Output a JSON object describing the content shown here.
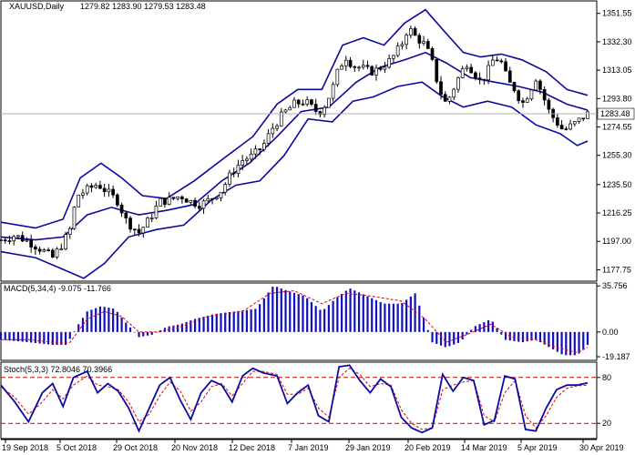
{
  "chart_data": [
    {
      "type": "candlestick",
      "title": "XAUUSD,Daily",
      "ohlc_label": "1279.82 1283.90 1279.53 1283.48",
      "ylim": [
        1170,
        1360
      ],
      "yticks": [
        "1351.55",
        "1332.30",
        "1313.05",
        "1293.80",
        "1274.55",
        "1255.30",
        "1235.50",
        "1216.25",
        "1197.00",
        "1177.75"
      ],
      "ytick_values": [
        1351.55,
        1332.3,
        1313.05,
        1293.8,
        1274.55,
        1255.3,
        1235.5,
        1216.25,
        1197.0,
        1177.75
      ],
      "current_price": 1283.48,
      "current_price_label": "1283.48",
      "xticks": [
        "19 Sep 2018",
        "5 Oct 2018",
        "29 Oct 2018",
        "20 Nov 2018",
        "12 Dec 2018",
        "7 Jan 2019",
        "29 Jan 2019",
        "20 Feb 2019",
        "14 Mar 2019",
        "5 Apr 2019",
        "30 Apr 2019"
      ],
      "close_path": [
        [
          0,
          1198
        ],
        [
          8,
          1201
        ],
        [
          16,
          1197
        ],
        [
          24,
          1191
        ],
        [
          30,
          1186
        ],
        [
          36,
          1196
        ],
        [
          40,
          1205
        ],
        [
          44,
          1228
        ],
        [
          50,
          1232
        ],
        [
          56,
          1236
        ],
        [
          62,
          1230
        ],
        [
          68,
          1224
        ],
        [
          72,
          1212
        ],
        [
          76,
          1207
        ],
        [
          80,
          1203
        ],
        [
          86,
          1212
        ],
        [
          92,
          1224
        ],
        [
          98,
          1225
        ],
        [
          104,
          1228
        ],
        [
          110,
          1224
        ],
        [
          116,
          1222
        ],
        [
          122,
          1226
        ],
        [
          128,
          1232
        ],
        [
          134,
          1244
        ],
        [
          140,
          1252
        ],
        [
          146,
          1255
        ],
        [
          152,
          1262
        ],
        [
          158,
          1275
        ],
        [
          164,
          1284
        ],
        [
          170,
          1290
        ],
        [
          176,
          1292
        ],
        [
          180,
          1288
        ],
        [
          184,
          1284
        ],
        [
          188,
          1290
        ],
        [
          192,
          1300
        ],
        [
          196,
          1315
        ],
        [
          200,
          1322
        ],
        [
          204,
          1316
        ],
        [
          208,
          1315
        ],
        [
          212,
          1313
        ],
        [
          216,
          1312
        ],
        [
          220,
          1315
        ],
        [
          226,
          1320
        ],
        [
          232,
          1330
        ],
        [
          236,
          1342
        ],
        [
          240,
          1336
        ],
        [
          246,
          1330
        ],
        [
          250,
          1318
        ],
        [
          254,
          1300
        ],
        [
          258,
          1290
        ],
        [
          262,
          1300
        ],
        [
          266,
          1310
        ],
        [
          270,
          1318
        ],
        [
          274,
          1312
        ],
        [
          278,
          1305
        ],
        [
          282,
          1312
        ],
        [
          286,
          1322
        ],
        [
          290,
          1318
        ],
        [
          294,
          1305
        ],
        [
          298,
          1300
        ],
        [
          302,
          1290
        ],
        [
          306,
          1298
        ],
        [
          310,
          1308
        ],
        [
          314,
          1296
        ],
        [
          318,
          1284
        ],
        [
          322,
          1278
        ],
        [
          326,
          1272
        ],
        [
          330,
          1275
        ],
        [
          334,
          1278
        ],
        [
          338,
          1282
        ],
        [
          340,
          1283.48
        ]
      ],
      "bollinger_upper_path": [
        [
          0,
          1210
        ],
        [
          20,
          1206
        ],
        [
          36,
          1212
        ],
        [
          46,
          1240
        ],
        [
          58,
          1250
        ],
        [
          70,
          1240
        ],
        [
          82,
          1228
        ],
        [
          96,
          1226
        ],
        [
          112,
          1238
        ],
        [
          130,
          1254
        ],
        [
          146,
          1268
        ],
        [
          160,
          1290
        ],
        [
          172,
          1300
        ],
        [
          186,
          1300
        ],
        [
          198,
          1330
        ],
        [
          210,
          1335
        ],
        [
          222,
          1330
        ],
        [
          234,
          1345
        ],
        [
          246,
          1354
        ],
        [
          258,
          1338
        ],
        [
          268,
          1325
        ],
        [
          278,
          1322
        ],
        [
          290,
          1324
        ],
        [
          302,
          1320
        ],
        [
          316,
          1312
        ],
        [
          328,
          1300
        ],
        [
          340,
          1296
        ]
      ],
      "bollinger_middle_path": [
        [
          0,
          1200
        ],
        [
          20,
          1198
        ],
        [
          36,
          1200
        ],
        [
          50,
          1215
        ],
        [
          64,
          1220
        ],
        [
          80,
          1215
        ],
        [
          96,
          1218
        ],
        [
          112,
          1222
        ],
        [
          128,
          1238
        ],
        [
          144,
          1250
        ],
        [
          160,
          1268
        ],
        [
          174,
          1285
        ],
        [
          190,
          1288
        ],
        [
          206,
          1305
        ],
        [
          220,
          1315
        ],
        [
          234,
          1320
        ],
        [
          246,
          1325
        ],
        [
          258,
          1318
        ],
        [
          272,
          1308
        ],
        [
          286,
          1305
        ],
        [
          300,
          1302
        ],
        [
          314,
          1298
        ],
        [
          328,
          1290
        ],
        [
          340,
          1286
        ]
      ],
      "bollinger_lower_path": [
        [
          0,
          1190
        ],
        [
          20,
          1186
        ],
        [
          36,
          1178
        ],
        [
          48,
          1172
        ],
        [
          60,
          1182
        ],
        [
          74,
          1200
        ],
        [
          90,
          1205
        ],
        [
          106,
          1208
        ],
        [
          122,
          1225
        ],
        [
          136,
          1235
        ],
        [
          150,
          1238
        ],
        [
          164,
          1255
        ],
        [
          178,
          1280
        ],
        [
          192,
          1278
        ],
        [
          204,
          1292
        ],
        [
          216,
          1295
        ],
        [
          230,
          1302
        ],
        [
          244,
          1305
        ],
        [
          256,
          1295
        ],
        [
          268,
          1288
        ],
        [
          282,
          1292
        ],
        [
          296,
          1288
        ],
        [
          310,
          1276
        ],
        [
          324,
          1270
        ],
        [
          334,
          1262
        ],
        [
          340,
          1265
        ]
      ]
    },
    {
      "type": "macd",
      "title": "MACD(5,34,4) -9.075 -11.766",
      "ylim": [
        -22,
        38
      ],
      "yticks": [
        "35.756",
        "0.00",
        "-19.187"
      ],
      "ytick_values": [
        35.756,
        0.0,
        -19.187
      ],
      "histogram_path": [
        [
          0,
          -6
        ],
        [
          16,
          -8
        ],
        [
          30,
          -10
        ],
        [
          38,
          -10
        ],
        [
          44,
          4
        ],
        [
          50,
          16
        ],
        [
          58,
          20
        ],
        [
          66,
          18
        ],
        [
          72,
          8
        ],
        [
          80,
          -4
        ],
        [
          88,
          -2
        ],
        [
          96,
          4
        ],
        [
          104,
          6
        ],
        [
          112,
          10
        ],
        [
          124,
          14
        ],
        [
          136,
          16
        ],
        [
          148,
          18
        ],
        [
          158,
          36
        ],
        [
          166,
          32
        ],
        [
          176,
          28
        ],
        [
          186,
          16
        ],
        [
          194,
          26
        ],
        [
          202,
          34
        ],
        [
          212,
          28
        ],
        [
          222,
          22
        ],
        [
          232,
          22
        ],
        [
          240,
          30
        ],
        [
          250,
          -8
        ],
        [
          258,
          -12
        ],
        [
          266,
          -8
        ],
        [
          274,
          4
        ],
        [
          284,
          10
        ],
        [
          292,
          -6
        ],
        [
          302,
          -8
        ],
        [
          310,
          -6
        ],
        [
          318,
          -12
        ],
        [
          326,
          -18
        ],
        [
          334,
          -18
        ],
        [
          340,
          -10
        ]
      ],
      "signal_path": [
        [
          0,
          -6
        ],
        [
          16,
          -6
        ],
        [
          30,
          -8
        ],
        [
          40,
          -8
        ],
        [
          50,
          10
        ],
        [
          60,
          16
        ],
        [
          70,
          12
        ],
        [
          80,
          0
        ],
        [
          92,
          0
        ],
        [
          104,
          4
        ],
        [
          120,
          12
        ],
        [
          140,
          16
        ],
        [
          156,
          30
        ],
        [
          170,
          32
        ],
        [
          186,
          22
        ],
        [
          200,
          30
        ],
        [
          214,
          28
        ],
        [
          232,
          24
        ],
        [
          246,
          10
        ],
        [
          258,
          -8
        ],
        [
          270,
          -2
        ],
        [
          284,
          6
        ],
        [
          296,
          -4
        ],
        [
          310,
          -6
        ],
        [
          322,
          -12
        ],
        [
          334,
          -16
        ],
        [
          340,
          -12
        ]
      ]
    },
    {
      "type": "stochastic",
      "title": "Stoch(5,3,3) 72.8046 70.3966",
      "ylim": [
        0,
        100
      ],
      "yticks": [
        "80",
        "20"
      ],
      "ytick_values": [
        80,
        20
      ],
      "main_path": [
        [
          0,
          70
        ],
        [
          8,
          48
        ],
        [
          16,
          22
        ],
        [
          24,
          60
        ],
        [
          30,
          72
        ],
        [
          36,
          42
        ],
        [
          42,
          80
        ],
        [
          50,
          88
        ],
        [
          56,
          60
        ],
        [
          62,
          72
        ],
        [
          68,
          62
        ],
        [
          74,
          40
        ],
        [
          80,
          10
        ],
        [
          86,
          40
        ],
        [
          92,
          70
        ],
        [
          98,
          80
        ],
        [
          104,
          50
        ],
        [
          110,
          25
        ],
        [
          116,
          60
        ],
        [
          122,
          76
        ],
        [
          128,
          70
        ],
        [
          134,
          48
        ],
        [
          140,
          82
        ],
        [
          146,
          92
        ],
        [
          152,
          86
        ],
        [
          160,
          82
        ],
        [
          166,
          46
        ],
        [
          172,
          60
        ],
        [
          178,
          70
        ],
        [
          184,
          30
        ],
        [
          190,
          22
        ],
        [
          196,
          94
        ],
        [
          202,
          96
        ],
        [
          208,
          76
        ],
        [
          214,
          60
        ],
        [
          220,
          78
        ],
        [
          226,
          68
        ],
        [
          232,
          28
        ],
        [
          238,
          14
        ],
        [
          244,
          8
        ],
        [
          250,
          14
        ],
        [
          256,
          84
        ],
        [
          262,
          62
        ],
        [
          268,
          80
        ],
        [
          274,
          76
        ],
        [
          280,
          18
        ],
        [
          286,
          24
        ],
        [
          292,
          82
        ],
        [
          298,
          78
        ],
        [
          304,
          12
        ],
        [
          310,
          10
        ],
        [
          316,
          40
        ],
        [
          322,
          64
        ],
        [
          328,
          70
        ],
        [
          334,
          70
        ],
        [
          340,
          73
        ]
      ],
      "signal_path": [
        [
          0,
          68
        ],
        [
          8,
          54
        ],
        [
          16,
          32
        ],
        [
          24,
          48
        ],
        [
          30,
          64
        ],
        [
          36,
          52
        ],
        [
          42,
          70
        ],
        [
          50,
          82
        ],
        [
          56,
          70
        ],
        [
          62,
          68
        ],
        [
          68,
          64
        ],
        [
          74,
          48
        ],
        [
          80,
          22
        ],
        [
          86,
          32
        ],
        [
          92,
          56
        ],
        [
          98,
          74
        ],
        [
          104,
          62
        ],
        [
          110,
          36
        ],
        [
          116,
          48
        ],
        [
          122,
          68
        ],
        [
          128,
          72
        ],
        [
          134,
          56
        ],
        [
          140,
          72
        ],
        [
          146,
          88
        ],
        [
          152,
          88
        ],
        [
          160,
          84
        ],
        [
          166,
          58
        ],
        [
          172,
          58
        ],
        [
          178,
          66
        ],
        [
          184,
          40
        ],
        [
          190,
          28
        ],
        [
          196,
          80
        ],
        [
          202,
          92
        ],
        [
          208,
          84
        ],
        [
          214,
          68
        ],
        [
          220,
          72
        ],
        [
          226,
          70
        ],
        [
          232,
          38
        ],
        [
          238,
          20
        ],
        [
          244,
          12
        ],
        [
          250,
          14
        ],
        [
          256,
          64
        ],
        [
          262,
          70
        ],
        [
          268,
          74
        ],
        [
          274,
          76
        ],
        [
          280,
          30
        ],
        [
          286,
          22
        ],
        [
          292,
          60
        ],
        [
          298,
          76
        ],
        [
          304,
          30
        ],
        [
          310,
          14
        ],
        [
          316,
          30
        ],
        [
          322,
          54
        ],
        [
          328,
          66
        ],
        [
          334,
          69
        ],
        [
          340,
          70
        ]
      ]
    }
  ]
}
